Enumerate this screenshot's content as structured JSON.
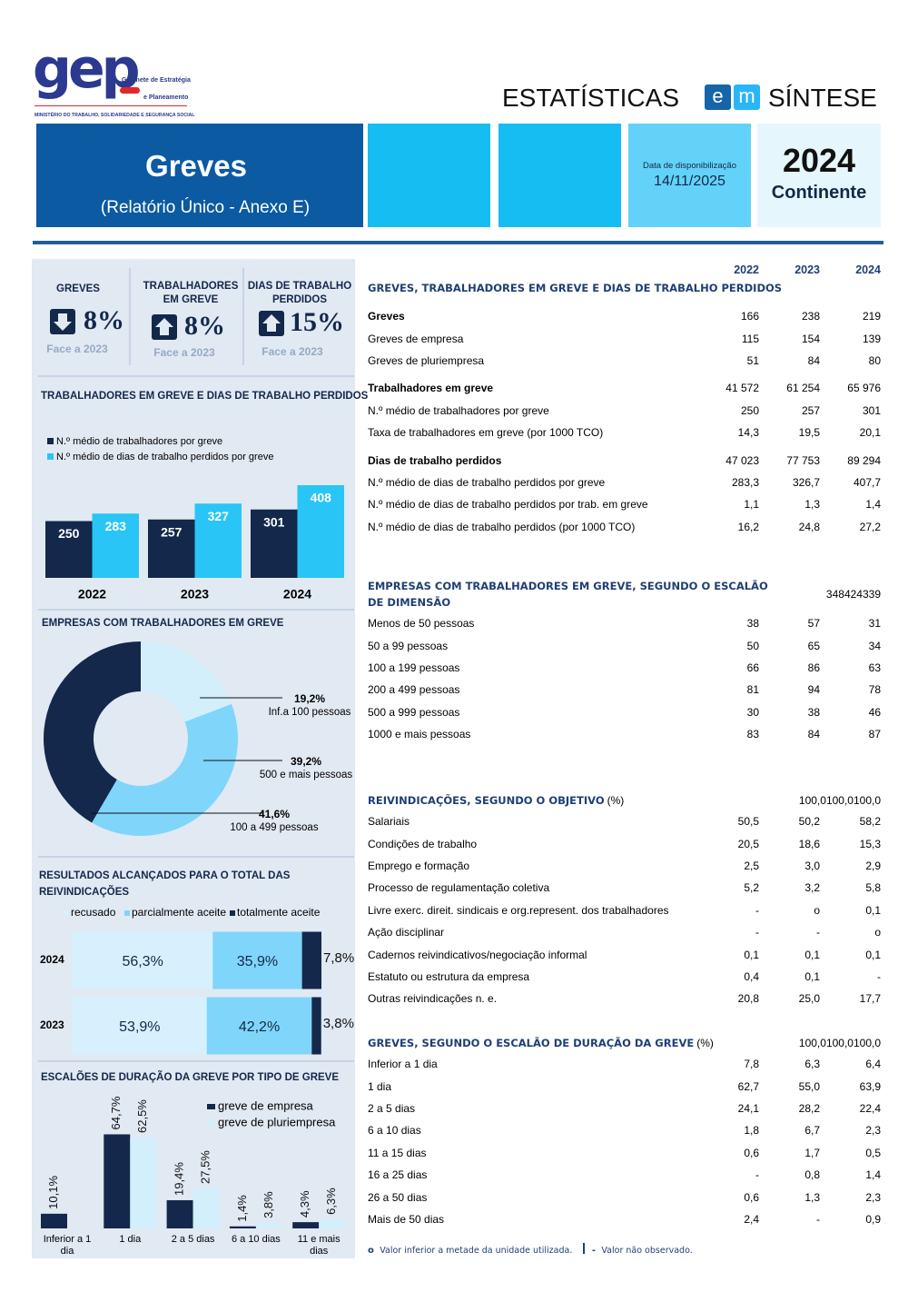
{
  "header": {
    "logo": "gep",
    "logo_line1": "Gabinete de Estratégia",
    "logo_line2": "e Planeamento",
    "ministry": "MINISTÉRIO DO TRABALHO, SOLIDARIEDADE E SEGURANÇA SOCIAL",
    "series_left": "ESTATÍSTICAS",
    "series_e": "e",
    "series_m": "m",
    "series_right": "SÍNTESE"
  },
  "banner": {
    "title": "Greves",
    "subtitle": "(Relatório Único - Anexo E)",
    "date_label": "Data de disponibilização",
    "date": "14/11/2025",
    "year": "2024",
    "region": "Continente"
  },
  "kpis": [
    {
      "label": "GREVES",
      "value": "8%",
      "note": "Face a 2023"
    },
    {
      "label": "TRABALHADORES EM GREVE",
      "value": "8%",
      "note": "Face a 2023"
    },
    {
      "label": "DIAS DE TRABALHO PERDIDOS",
      "value": "15%",
      "note": "Face a 2023"
    }
  ],
  "chart_data": [
    {
      "type": "bar",
      "title": "TRABALHADORES EM GREVE E DIAS DE TRABALHO PERDIDOS",
      "categories": [
        "2022",
        "2023",
        "2024"
      ],
      "series": [
        {
          "name": "N.º médio de trabalhadores por greve",
          "color": "#13284a",
          "values": [
            250,
            257,
            301
          ]
        },
        {
          "name": "N.º médio de dias de trabalho perdidos por greve",
          "color": "#29c5f6",
          "values": [
            283,
            327,
            408
          ]
        }
      ],
      "ylim": [
        0,
        450
      ]
    },
    {
      "type": "donut",
      "title": "EMPRESAS COM TRABALHADORES EM GREVE",
      "categories": [
        "Inf.a 100 pessoas",
        "500 e mais pessoas",
        "100 a 499 pessoas"
      ],
      "values": [
        19.2,
        39.2,
        41.6
      ],
      "value_labels": [
        "19,2%",
        "39,2%",
        "41,6%"
      ],
      "colors": [
        "#d3effc",
        "#7fd6fa",
        "#13284a"
      ]
    },
    {
      "type": "stacked_bar",
      "title": "RESULTADOS ALCANÇADOS PARA O TOTAL DAS REIVINDICAÇÕES",
      "categories": [
        "2024",
        "2023"
      ],
      "series": [
        {
          "name": "recusado",
          "color": "#d6f1fd",
          "values": [
            56.3,
            53.9
          ],
          "value_labels": [
            "56,3%",
            "53,9%"
          ]
        },
        {
          "name": "parcialmente aceite",
          "color": "#7fd6fa",
          "values": [
            35.9,
            42.2
          ],
          "value_labels": [
            "35,9%",
            "42,2%"
          ]
        },
        {
          "name": "totalmente aceite",
          "color": "#13284a",
          "values": [
            7.8,
            3.8
          ],
          "value_labels": [
            "7,8%",
            "3,8%"
          ]
        }
      ],
      "xlim": [
        0,
        100
      ]
    },
    {
      "type": "bar",
      "title": "ESCALÕES DE DURAÇÃO DA GREVE POR TIPO DE GREVE",
      "categories": [
        "Inferior a 1 dia",
        "1 dia",
        "2 a 5 dias",
        "6 a 10 dias",
        "11 e mais dias"
      ],
      "series": [
        {
          "name": "greve de empresa",
          "color": "#13284a",
          "values": [
            10.1,
            64.7,
            19.4,
            1.4,
            4.3
          ],
          "value_labels": [
            "10,1%",
            "64,7%",
            "19,4%",
            "1,4%",
            "4,3%"
          ]
        },
        {
          "name": "greve de pluriempresa",
          "color": "#d3effc",
          "values": [
            null,
            62.5,
            27.5,
            3.8,
            6.3
          ],
          "value_labels": [
            null,
            "62,5%",
            "27,5%",
            "3,8%",
            "6,3%"
          ]
        }
      ],
      "ylim": [
        0,
        70
      ]
    }
  ],
  "table": {
    "years": [
      "2022",
      "2023",
      "2024"
    ],
    "sections": [
      {
        "title": "GREVES, TRABALHADORES EM GREVE E DIAS DE TRABALHO PERDIDOS",
        "groups": [
          {
            "head": {
              "label": "Greves",
              "values": [
                "166",
                "238",
                "219"
              ]
            },
            "rows": [
              {
                "label": "Greves de empresa",
                "values": [
                  "115",
                  "154",
                  "139"
                ]
              },
              {
                "label": "Greves de pluriempresa",
                "values": [
                  "51",
                  "84",
                  "80"
                ]
              }
            ]
          },
          {
            "head": {
              "label": "Trabalhadores em greve",
              "values": [
                "41 572",
                "61 254",
                "65 976"
              ]
            },
            "rows": [
              {
                "label": "N.º médio de trabalhadores por greve",
                "values": [
                  "250",
                  "257",
                  "301"
                ]
              },
              {
                "label": "Taxa de trabalhadores em greve (por 1000 TCO)",
                "values": [
                  "14,3",
                  "19,5",
                  "20,1"
                ]
              }
            ]
          },
          {
            "head": {
              "label": "Dias de trabalho perdidos",
              "values": [
                "47 023",
                "77 753",
                "89 294"
              ]
            },
            "rows": [
              {
                "label": "N.º médio de dias de trabalho perdidos por greve",
                "values": [
                  "283,3",
                  "326,7",
                  "407,7"
                ]
              },
              {
                "label": "N.º médio de dias de trabalho perdidos por trab. em greve",
                "values": [
                  "1,1",
                  "1,3",
                  "1,4"
                ]
              },
              {
                "label": "N.º médio de dias de trabalho perdidos (por 1000 TCO)",
                "values": [
                  "16,2",
                  "24,8",
                  "27,2"
                ]
              }
            ]
          }
        ]
      },
      {
        "title": "EMPRESAS COM TRABALHADORES EM GREVE, SEGUNDO O ESCALÃO DE DIMENSÃO",
        "values": [
          "348",
          "424",
          "339"
        ],
        "rows": [
          {
            "label": "Menos de 50 pessoas",
            "values": [
              "38",
              "57",
              "31"
            ]
          },
          {
            "label": "50 a 99 pessoas",
            "values": [
              "50",
              "65",
              "34"
            ]
          },
          {
            "label": "100 a 199 pessoas",
            "values": [
              "66",
              "86",
              "63"
            ]
          },
          {
            "label": "200 a 499 pessoas",
            "values": [
              "81",
              "94",
              "78"
            ]
          },
          {
            "label": "500 a 999 pessoas",
            "values": [
              "30",
              "38",
              "46"
            ]
          },
          {
            "label": "1000 e mais pessoas",
            "values": [
              "83",
              "84",
              "87"
            ]
          }
        ]
      },
      {
        "title": "REIVINDICAÇÕES, SEGUNDO O OBJETIVO",
        "unit": "(%)",
        "values": [
          "100,0",
          "100,0",
          "100,0"
        ],
        "rows": [
          {
            "label": "Salariais",
            "values": [
              "50,5",
              "50,2",
              "58,2"
            ]
          },
          {
            "label": "Condições de trabalho",
            "values": [
              "20,5",
              "18,6",
              "15,3"
            ]
          },
          {
            "label": "Emprego e formação",
            "values": [
              "2,5",
              "3,0",
              "2,9"
            ]
          },
          {
            "label": "Processo de regulamentação coletiva",
            "values": [
              "5,2",
              "3,2",
              "5,8"
            ]
          },
          {
            "label": "Livre exerc. direit. sindicais e org.represent. dos trabalhadores",
            "values": [
              "-",
              "o",
              "0,1"
            ]
          },
          {
            "label": "Ação disciplinar",
            "values": [
              "-",
              "-",
              "o"
            ]
          },
          {
            "label": "Cadernos reivindicativos/negociação informal",
            "values": [
              "0,1",
              "0,1",
              "0,1"
            ]
          },
          {
            "label": "Estatuto ou estrutura da empresa",
            "values": [
              "0,4",
              "0,1",
              "-"
            ]
          },
          {
            "label": "Outras reivindicações n. e.",
            "values": [
              "20,8",
              "25,0",
              "17,7"
            ]
          }
        ]
      },
      {
        "title": "GREVES, SEGUNDO O ESCALÃO DE DURAÇÃO DA GREVE",
        "unit": "(%)",
        "values": [
          "100,0",
          "100,0",
          "100,0"
        ],
        "rows": [
          {
            "label": "Inferior a 1 dia",
            "values": [
              "7,8",
              "6,3",
              "6,4"
            ]
          },
          {
            "label": "1 dia",
            "values": [
              "62,7",
              "55,0",
              "63,9"
            ]
          },
          {
            "label": "2 a 5 dias",
            "values": [
              "24,1",
              "28,2",
              "22,4"
            ]
          },
          {
            "label": "6 a 10 dias",
            "values": [
              "1,8",
              "6,7",
              "2,3"
            ]
          },
          {
            "label": "11 a 15 dias",
            "values": [
              "0,6",
              "1,7",
              "0,5"
            ]
          },
          {
            "label": "16 a 25 dias",
            "values": [
              "-",
              "0,8",
              "1,4"
            ]
          },
          {
            "label": "26 a 50 dias",
            "values": [
              "0,6",
              "1,3",
              "2,3"
            ]
          },
          {
            "label": "Mais de 50 dias",
            "values": [
              "2,4",
              "-",
              "0,9"
            ]
          }
        ]
      }
    ]
  },
  "footnotes": [
    {
      "symbol": "o",
      "text": "Valor inferior a metade da unidade utilizada."
    },
    {
      "symbol": "-",
      "text": "Valor não observado."
    }
  ]
}
